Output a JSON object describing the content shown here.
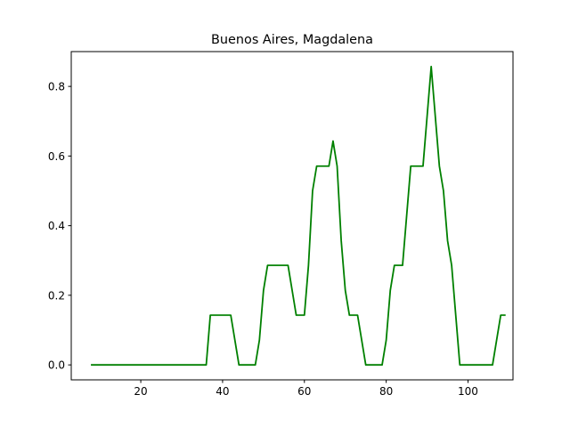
{
  "chart_data": {
    "type": "line",
    "title": "Buenos Aires, Magdalena",
    "xlabel": "",
    "ylabel": "",
    "xlim": [
      3,
      111
    ],
    "ylim": [
      -0.043,
      0.9
    ],
    "xticks": [
      20,
      40,
      60,
      80,
      100
    ],
    "yticks": [
      0.0,
      0.2,
      0.4,
      0.6,
      0.8
    ],
    "ytick_labels": [
      "0.0",
      "0.2",
      "0.4",
      "0.6",
      "0.8"
    ],
    "grid": false,
    "series": [
      {
        "color": "#008000",
        "x": [
          8,
          35,
          36,
          37,
          42,
          44,
          47,
          48,
          49,
          50,
          51,
          56,
          58,
          60,
          61,
          62,
          63,
          66,
          67,
          68,
          69,
          70,
          71,
          73,
          75,
          79,
          80,
          81,
          82,
          84,
          86,
          89,
          91,
          93,
          94,
          95,
          96,
          97,
          98,
          106,
          108,
          109
        ],
        "y": [
          0.0,
          0.0,
          0.0,
          0.143,
          0.143,
          0.0,
          0.0,
          0.0,
          0.071,
          0.214,
          0.286,
          0.286,
          0.143,
          0.143,
          0.286,
          0.5,
          0.571,
          0.571,
          0.643,
          0.571,
          0.357,
          0.214,
          0.143,
          0.143,
          0.0,
          0.0,
          0.071,
          0.214,
          0.286,
          0.286,
          0.571,
          0.571,
          0.857,
          0.571,
          0.5,
          0.357,
          0.286,
          0.143,
          0.0,
          0.0,
          0.143,
          0.143
        ]
      }
    ]
  }
}
